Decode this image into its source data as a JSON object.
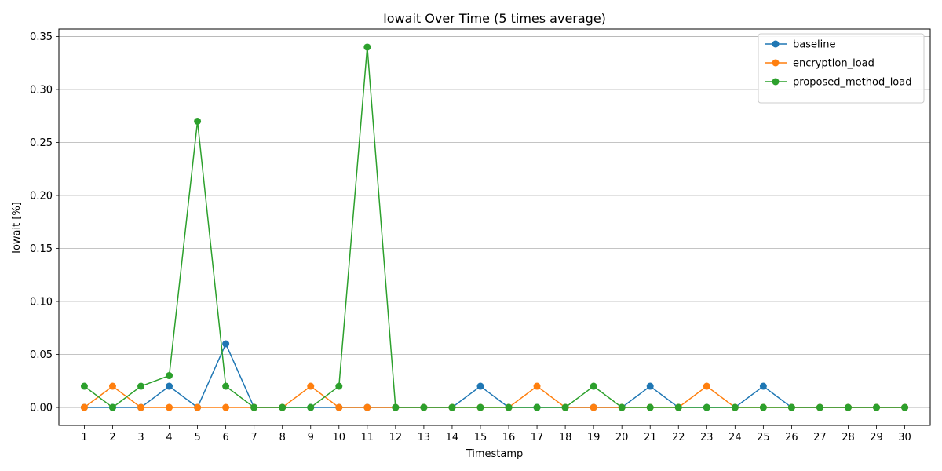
{
  "chart_data": {
    "type": "line",
    "title": "Iowait Over Time (5 times average)",
    "xlabel": "Timestamp",
    "ylabel": "Iowait [%]",
    "x": [
      1,
      2,
      3,
      4,
      5,
      6,
      7,
      8,
      9,
      10,
      11,
      12,
      13,
      14,
      15,
      16,
      17,
      18,
      19,
      20,
      21,
      22,
      23,
      24,
      25,
      26,
      27,
      28,
      29,
      30
    ],
    "x_ticks": [
      "1",
      "2",
      "3",
      "4",
      "5",
      "6",
      "7",
      "8",
      "9",
      "10",
      "11",
      "12",
      "13",
      "14",
      "15",
      "16",
      "17",
      "18",
      "19",
      "20",
      "21",
      "22",
      "23",
      "24",
      "25",
      "26",
      "27",
      "28",
      "29",
      "30"
    ],
    "xlim": [
      0.1,
      30.9
    ],
    "ylim": [
      -0.017,
      0.357
    ],
    "y_ticks": [
      0.0,
      0.05,
      0.1,
      0.15,
      0.2,
      0.25,
      0.3,
      0.35
    ],
    "y_tick_labels": [
      "0.00",
      "0.05",
      "0.10",
      "0.15",
      "0.20",
      "0.25",
      "0.30",
      "0.35"
    ],
    "grid": "y-only",
    "legend_position": "top-right",
    "series": [
      {
        "name": "baseline",
        "color": "#1f77b4",
        "values": [
          0,
          0,
          0,
          0.02,
          0,
          0.06,
          0,
          0,
          0,
          0,
          0,
          0,
          0,
          0,
          0.02,
          0,
          0,
          0,
          0,
          0,
          0.02,
          0,
          0,
          0,
          0.02,
          0,
          0,
          0,
          0,
          0
        ]
      },
      {
        "name": "encryption_load",
        "color": "#ff7f0e",
        "values": [
          0,
          0.02,
          0,
          0,
          0,
          0,
          0,
          0,
          0.02,
          0,
          0,
          0,
          0,
          0,
          0,
          0,
          0.02,
          0,
          0,
          0,
          0,
          0,
          0.02,
          0,
          0,
          0,
          0,
          0,
          0,
          0
        ]
      },
      {
        "name": "proposed_method_load",
        "color": "#2ca02c",
        "values": [
          0.02,
          0,
          0.02,
          0.03,
          0.27,
          0.02,
          0,
          0,
          0,
          0.02,
          0.34,
          0,
          0,
          0,
          0,
          0,
          0,
          0,
          0.02,
          0,
          0,
          0,
          0,
          0,
          0,
          0,
          0,
          0,
          0,
          0
        ]
      }
    ]
  }
}
